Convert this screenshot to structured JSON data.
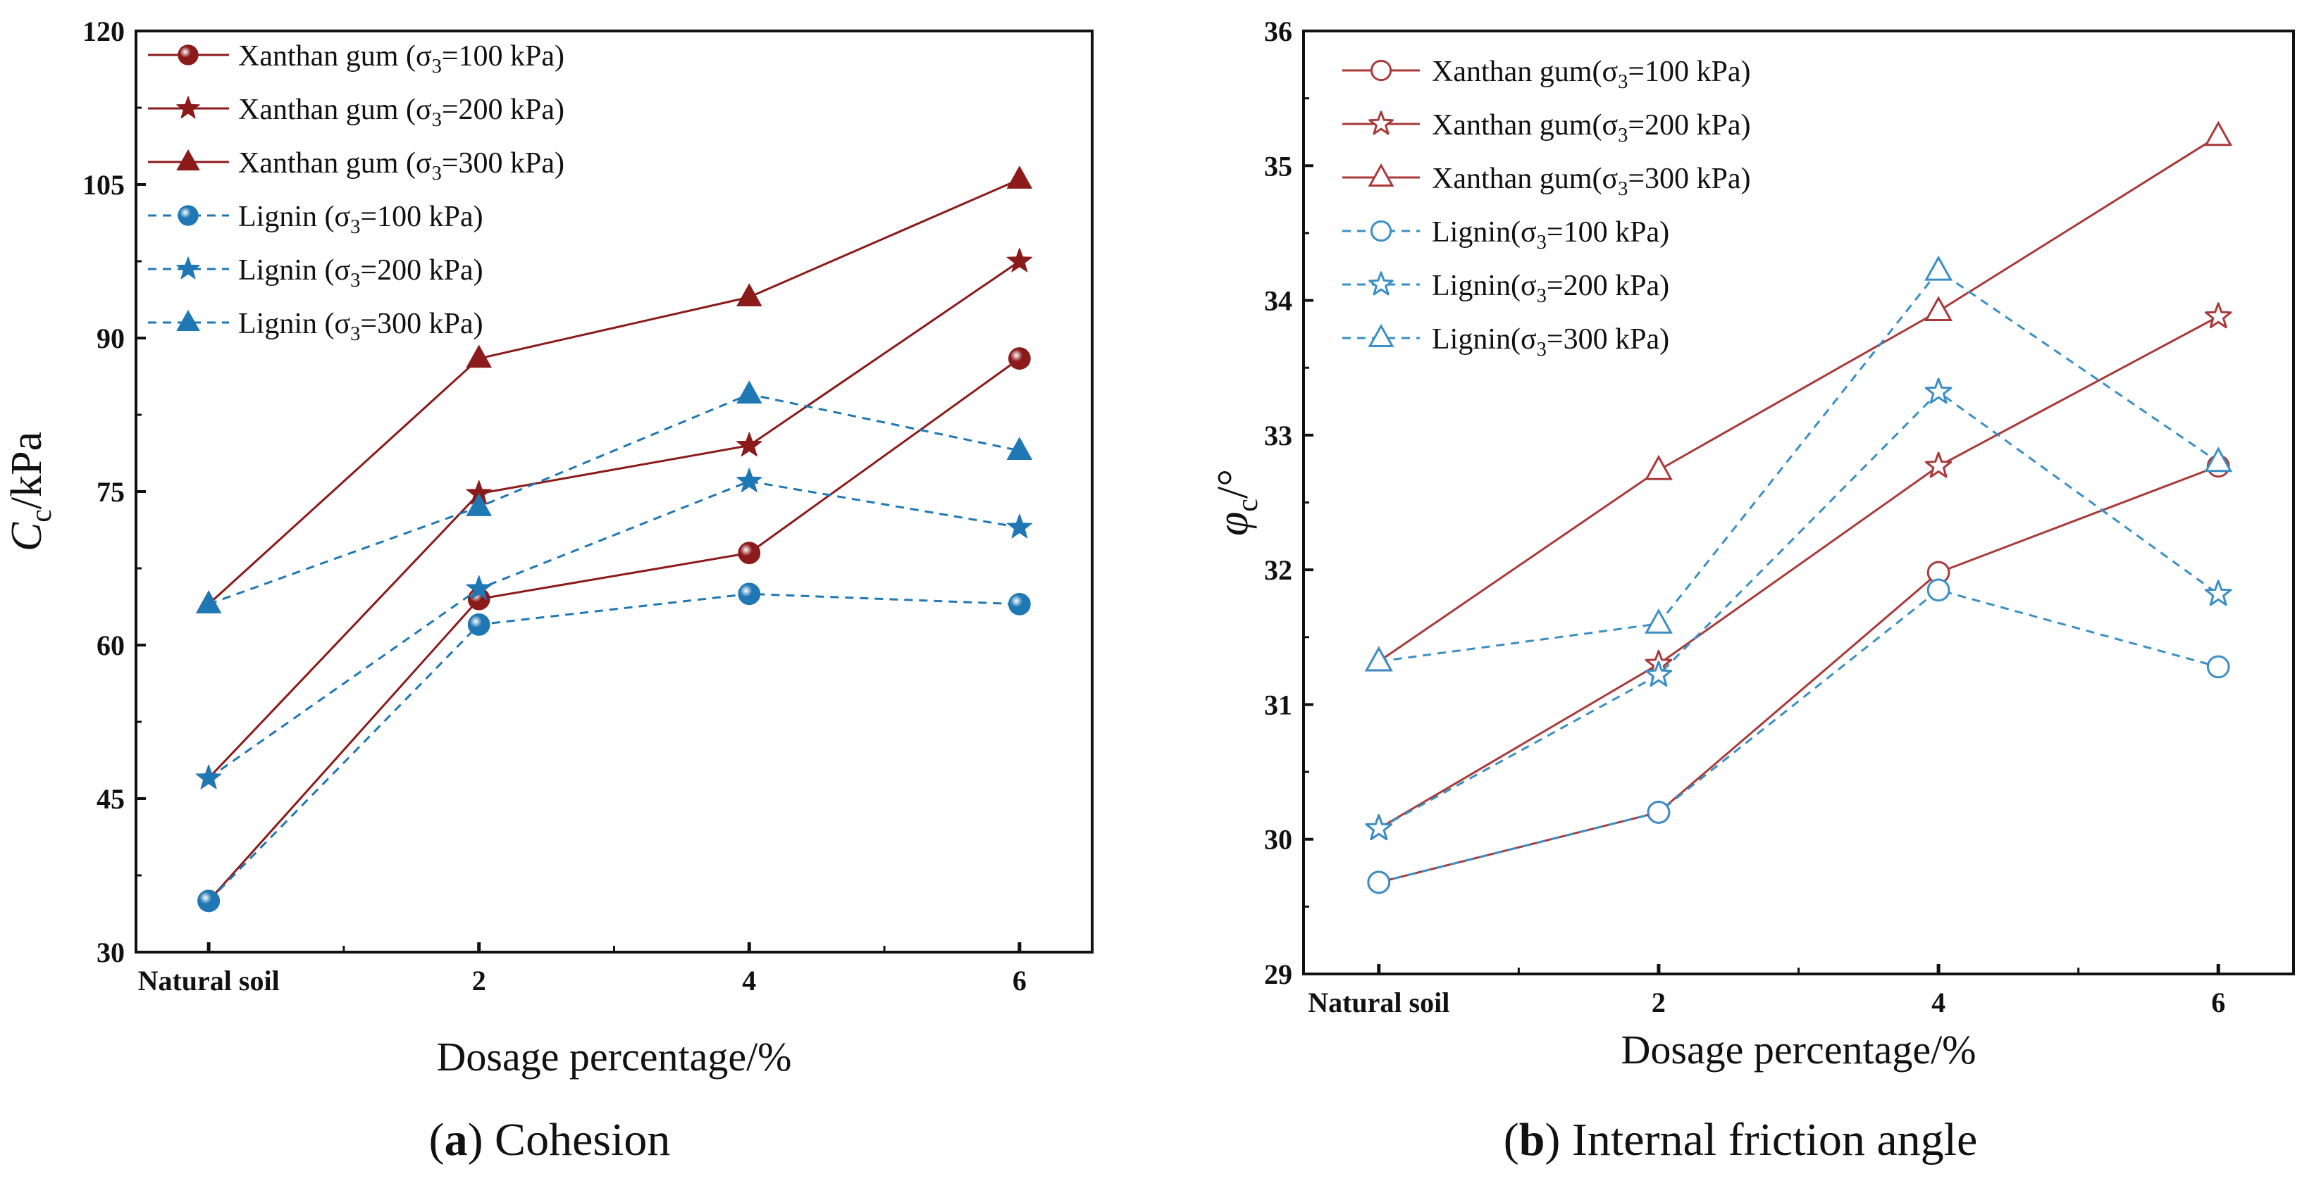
{
  "chart_data": [
    {
      "type": "line",
      "panel": "a",
      "caption_letter": "a",
      "caption_text": "Cohesion",
      "xlabel": "Dosage percentage/%",
      "ylabel_main": "C",
      "ylabel_sub": "c",
      "ylabel_unit": "/kPa",
      "categories": [
        "Natural soil",
        "2",
        "4",
        "6"
      ],
      "x": [
        0,
        2,
        4,
        6
      ],
      "xlim": [
        0,
        6
      ],
      "ylim": [
        30,
        120
      ],
      "yticks": [
        "30",
        "45",
        "60",
        "75",
        "90",
        "105",
        "120"
      ],
      "legend_position": "top-left",
      "series": [
        {
          "name_prefix": "Xanthan gum (σ",
          "name_sub": "3",
          "name_suffix": "=100 kPa)",
          "marker": "ball",
          "filled": true,
          "dashed": false,
          "color": "#8b1a1a",
          "values": [
            35,
            64.5,
            69,
            88
          ]
        },
        {
          "name_prefix": "Xanthan gum (σ",
          "name_sub": "3",
          "name_suffix": "=200 kPa)",
          "marker": "star",
          "filled": true,
          "dashed": false,
          "color": "#8b1a1a",
          "values": [
            47,
            74.8,
            79.5,
            97.5
          ]
        },
        {
          "name_prefix": "Xanthan gum (σ",
          "name_sub": "3",
          "name_suffix": "=300 kPa)",
          "marker": "triangle",
          "filled": true,
          "dashed": false,
          "color": "#8b1a1a",
          "values": [
            64,
            88,
            94,
            105.5
          ]
        },
        {
          "name_prefix": "Lignin (σ",
          "name_sub": "3",
          "name_suffix": "=100 kPa)",
          "marker": "ball",
          "filled": true,
          "dashed": true,
          "color": "#1f77b4",
          "values": [
            35,
            62,
            65,
            64
          ]
        },
        {
          "name_prefix": "Lignin (σ",
          "name_sub": "3",
          "name_suffix": "=200 kPa)",
          "marker": "star",
          "filled": true,
          "dashed": true,
          "color": "#1f77b4",
          "values": [
            47,
            65.5,
            76,
            71.5
          ]
        },
        {
          "name_prefix": "Lignin (σ",
          "name_sub": "3",
          "name_suffix": "=300 kPa)",
          "marker": "triangle",
          "filled": true,
          "dashed": true,
          "color": "#1f77b4",
          "values": [
            64,
            73.5,
            84.5,
            79
          ]
        }
      ]
    },
    {
      "type": "line",
      "panel": "b",
      "caption_letter": "b",
      "caption_text": "Internal friction angle",
      "xlabel": "Dosage percentage/%",
      "ylabel_main": "φ",
      "ylabel_sub": "c",
      "ylabel_unit": "/°",
      "categories": [
        "Natural soil",
        "2",
        "4",
        "6"
      ],
      "x": [
        0,
        2,
        4,
        6
      ],
      "xlim": [
        0,
        6
      ],
      "ylim": [
        29,
        36
      ],
      "yticks": [
        "29",
        "30",
        "31",
        "32",
        "33",
        "34",
        "35",
        "36"
      ],
      "legend_position": "top-left",
      "series": [
        {
          "name_prefix": "Xanthan gum(σ",
          "name_sub": "3",
          "name_suffix": "=100 kPa)",
          "marker": "circle",
          "filled": false,
          "dashed": false,
          "color": "#a83a3a",
          "values": [
            29.68,
            30.2,
            31.98,
            32.77
          ]
        },
        {
          "name_prefix": "Xanthan gum(σ",
          "name_sub": "3",
          "name_suffix": "=200 kPa)",
          "marker": "star",
          "filled": false,
          "dashed": false,
          "color": "#a83a3a",
          "values": [
            30.08,
            31.3,
            32.77,
            33.88
          ]
        },
        {
          "name_prefix": "Xanthan gum(σ",
          "name_sub": "3",
          "name_suffix": "=300 kPa)",
          "marker": "triangle",
          "filled": false,
          "dashed": false,
          "color": "#a83a3a",
          "values": [
            31.32,
            32.74,
            33.92,
            35.22
          ]
        },
        {
          "name_prefix": "Lignin(σ",
          "name_sub": "3",
          "name_suffix": "=100 kPa)",
          "marker": "circle",
          "filled": false,
          "dashed": true,
          "color": "#3a8fc4",
          "values": [
            29.68,
            30.2,
            31.85,
            31.28
          ]
        },
        {
          "name_prefix": "Lignin(σ",
          "name_sub": "3",
          "name_suffix": "=200 kPa)",
          "marker": "star",
          "filled": false,
          "dashed": true,
          "color": "#3a8fc4",
          "values": [
            30.08,
            31.22,
            33.32,
            31.82
          ]
        },
        {
          "name_prefix": "Lignin(σ",
          "name_sub": "3",
          "name_suffix": "=300 kPa)",
          "marker": "triangle",
          "filled": false,
          "dashed": true,
          "color": "#3a8fc4",
          "values": [
            31.32,
            31.6,
            34.22,
            32.8
          ]
        }
      ]
    }
  ]
}
